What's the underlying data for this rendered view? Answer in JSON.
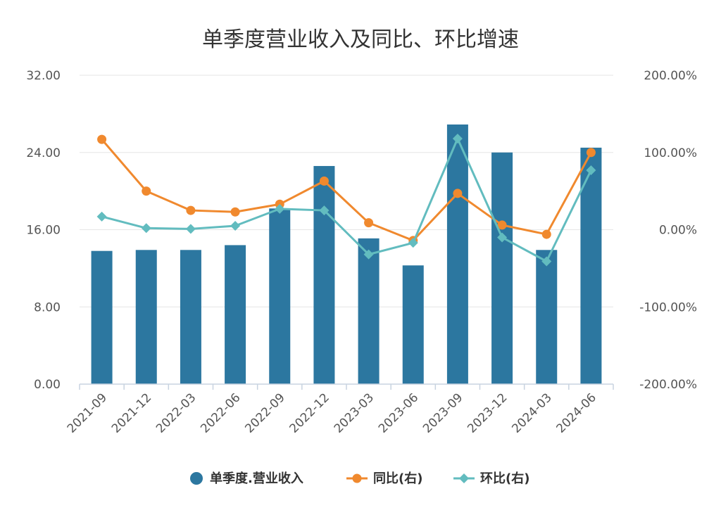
{
  "chart_data": {
    "type": "bar+line",
    "title": "单季度营业收入及同比、环比增速",
    "categories": [
      "2021-09",
      "2021-12",
      "2022-03",
      "2022-06",
      "2022-09",
      "2022-12",
      "2023-03",
      "2023-06",
      "2023-09",
      "2023-12",
      "2024-03",
      "2024-06"
    ],
    "left_axis": {
      "ylim": [
        0,
        32
      ],
      "ticks": [
        "0.00",
        "8.00",
        "16.00",
        "24.00",
        "32.00"
      ]
    },
    "right_axis": {
      "ylim": [
        -200,
        200
      ],
      "ticks": [
        "-200.00%",
        "-100.00%",
        "0.00%",
        "100.00%",
        "200.00%"
      ]
    },
    "series": [
      {
        "name": "单季度.营业收入",
        "type": "bar",
        "axis": "left",
        "color": "#2c77a0",
        "values": [
          13.8,
          13.9,
          13.9,
          14.4,
          18.2,
          22.6,
          15.1,
          12.3,
          26.9,
          24.0,
          13.9,
          24.5
        ]
      },
      {
        "name": "同比(右)",
        "type": "line",
        "axis": "right",
        "marker": "circle",
        "color": "#f0892e",
        "values": [
          117,
          50,
          25,
          23,
          33,
          63,
          9,
          -14,
          47,
          6,
          -6,
          100
        ]
      },
      {
        "name": "环比(右)",
        "type": "line",
        "axis": "right",
        "marker": "diamond",
        "color": "#62bcbf",
        "values": [
          17,
          2,
          1,
          5,
          27,
          25,
          -32,
          -17,
          118,
          -10,
          -41,
          77
        ]
      }
    ],
    "legend_position": "bottom",
    "grid": true
  }
}
